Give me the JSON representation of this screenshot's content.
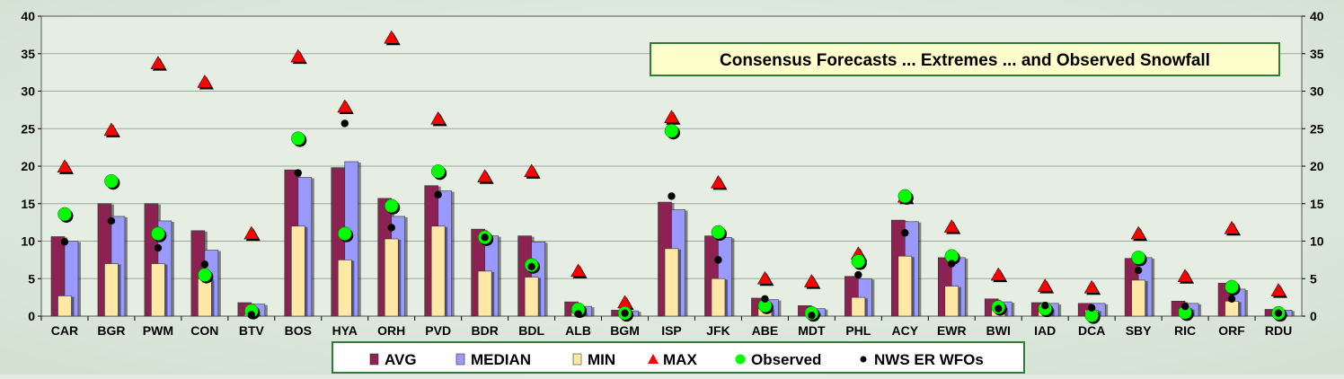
{
  "chart_data": {
    "type": "bar",
    "title": "Consensus Forecasts ... Extremes ... and Observed Snowfall",
    "xlabel": "",
    "ylabel": "",
    "ylim": [
      0,
      40
    ],
    "yticks": [
      0,
      5,
      10,
      15,
      20,
      25,
      30,
      35,
      40
    ],
    "secondary_yaxis": true,
    "grid": true,
    "legend_position": "bottom",
    "categories": [
      "CAR",
      "BGR",
      "PWM",
      "CON",
      "BTV",
      "BOS",
      "HYA",
      "ORH",
      "PVD",
      "BDR",
      "BDL",
      "ALB",
      "BGM",
      "ISP",
      "JFK",
      "ABE",
      "MDT",
      "PHL",
      "ACY",
      "EWR",
      "BWI",
      "IAD",
      "DCA",
      "SBY",
      "RIC",
      "ORF",
      "RDU"
    ],
    "series": [
      {
        "name": "AVG",
        "kind": "bar",
        "color": "#8b2252",
        "values": [
          10.6,
          15.0,
          15.0,
          11.4,
          1.8,
          19.5,
          19.8,
          15.7,
          17.4,
          11.6,
          10.7,
          1.9,
          0.8,
          15.2,
          10.7,
          2.4,
          1.4,
          5.3,
          12.8,
          7.8,
          2.3,
          1.8,
          1.7,
          7.7,
          2.0,
          4.4,
          0.9
        ]
      },
      {
        "name": "MEDIAN",
        "kind": "bar",
        "color": "#9999ff",
        "values": [
          10.0,
          13.3,
          12.7,
          8.8,
          1.6,
          18.5,
          20.6,
          13.3,
          16.7,
          10.7,
          9.9,
          1.3,
          0.7,
          14.2,
          10.5,
          2.2,
          1.0,
          5.0,
          12.6,
          7.8,
          1.9,
          1.7,
          1.7,
          7.8,
          1.7,
          3.6,
          0.8
        ]
      },
      {
        "name": "MIN",
        "kind": "bar",
        "color": "#ffe8a6",
        "values": [
          2.7,
          7.0,
          7.0,
          5.0,
          0.3,
          12.0,
          7.5,
          10.3,
          12.0,
          6.0,
          5.2,
          0.5,
          0.3,
          9.0,
          5.0,
          1.0,
          0.5,
          2.5,
          8.0,
          4.0,
          1.2,
          1.0,
          0.8,
          4.8,
          1.0,
          2.0,
          0.3
        ]
      },
      {
        "name": "MAX",
        "kind": "marker",
        "marker": "triangle",
        "color": "#ff0000",
        "values": [
          19.9,
          24.8,
          33.7,
          31.2,
          11.0,
          34.6,
          27.9,
          37.1,
          26.3,
          18.6,
          19.3,
          6.0,
          1.8,
          26.5,
          17.8,
          5.0,
          4.6,
          8.3,
          15.9,
          11.9,
          5.5,
          4.0,
          3.8,
          11.0,
          5.3,
          11.7,
          3.4
        ]
      },
      {
        "name": "Observed",
        "kind": "marker",
        "marker": "circle",
        "color": "#00ff00",
        "values": [
          13.6,
          18.0,
          11.0,
          5.5,
          0.7,
          23.7,
          11.0,
          14.7,
          19.3,
          10.5,
          6.8,
          0.9,
          0.4,
          24.7,
          11.2,
          1.4,
          0.4,
          7.3,
          16.0,
          8.0,
          1.2,
          1.0,
          0.1,
          7.8,
          0.5,
          3.9,
          0.4
        ]
      },
      {
        "name": "NWS ER WFOs",
        "kind": "marker",
        "marker": "dot",
        "color": "#000000",
        "values": [
          9.9,
          12.7,
          9.1,
          6.9,
          0.2,
          19.1,
          25.7,
          11.8,
          16.2,
          10.5,
          6.6,
          0.3,
          0.4,
          16.0,
          7.5,
          2.3,
          0.1,
          5.5,
          11.1,
          7.0,
          1.0,
          1.4,
          1.1,
          6.1,
          1.3,
          2.3,
          0.4
        ]
      }
    ]
  }
}
